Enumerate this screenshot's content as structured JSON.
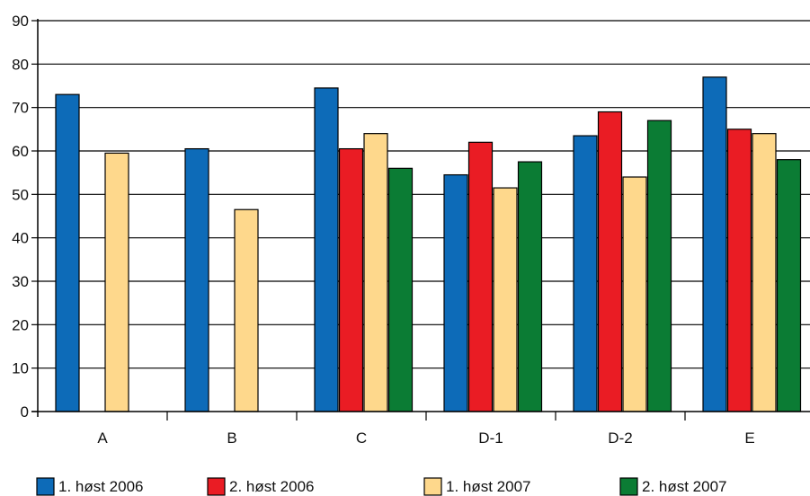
{
  "chart_data": {
    "type": "bar",
    "title": "",
    "xlabel": "",
    "ylabel": "",
    "categories": [
      "A",
      "B",
      "C",
      "D-1",
      "D-2",
      "E"
    ],
    "ylim": [
      0,
      90
    ],
    "yticks": [
      0,
      10,
      20,
      30,
      40,
      50,
      60,
      70,
      80,
      90
    ],
    "grid": true,
    "legend_position": "bottom",
    "series": [
      {
        "name": "1. høst 2006",
        "color": "#0d6bb8",
        "values": [
          73,
          60.5,
          74.5,
          54.5,
          63.5,
          77
        ]
      },
      {
        "name": "2. høst 2006",
        "color": "#ea1c24",
        "values": [
          null,
          null,
          60.5,
          62,
          69,
          65
        ]
      },
      {
        "name": "1. høst 2007",
        "color": "#fed88c",
        "values": [
          59.5,
          46.5,
          64,
          51.5,
          54,
          64
        ]
      },
      {
        "name": "2. høst 2007",
        "color": "#0b7c34",
        "values": [
          null,
          null,
          56,
          57.5,
          67,
          58
        ]
      }
    ]
  }
}
